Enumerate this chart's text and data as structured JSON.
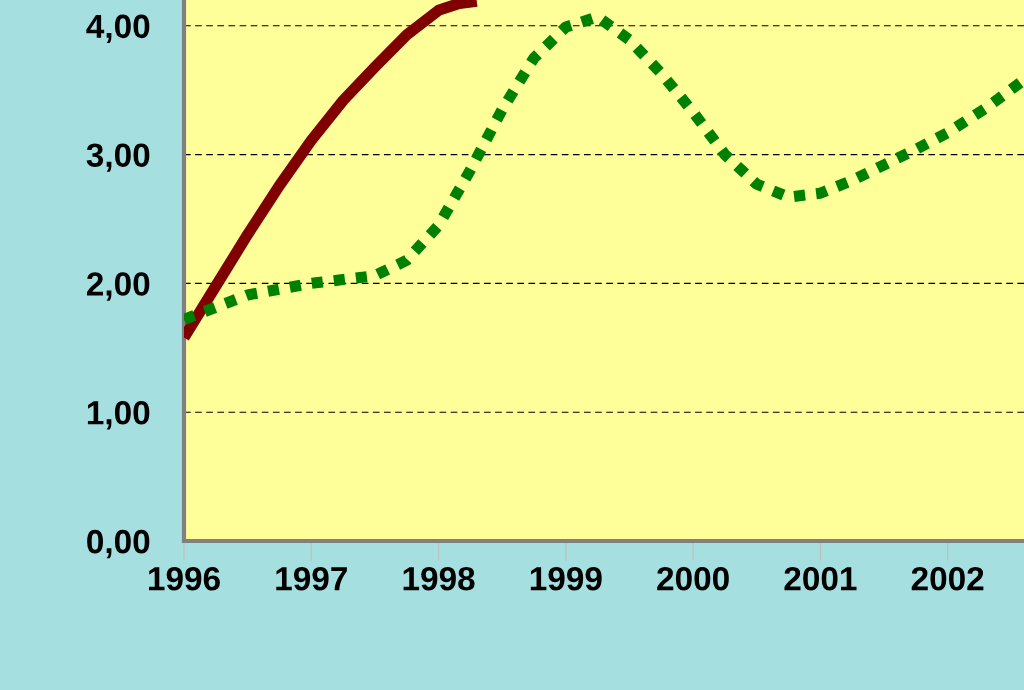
{
  "chart_data": {
    "type": "line",
    "series": [
      {
        "color": "#800000",
        "line_style": "solid",
        "x": [
          1996,
          1996.25,
          1996.5,
          1996.75,
          1997,
          1997.25,
          1997.5,
          1997.75,
          1998,
          1998.15,
          1998.3
        ],
        "values": [
          1.58,
          1.98,
          2.38,
          2.76,
          3.11,
          3.42,
          3.68,
          3.93,
          4.12,
          4.17,
          4.19
        ]
      },
      {
        "color": "#008000",
        "line_style": "dotted",
        "x": [
          1996,
          1996.5,
          1997,
          1997.5,
          1997.75,
          1998,
          1998.25,
          1998.5,
          1998.75,
          1999,
          1999.25,
          1999.5,
          1999.75,
          2000,
          2000.25,
          2000.5,
          2000.75,
          2001,
          2001.25,
          2001.5,
          2001.75,
          2002,
          2002.3,
          2002.6
        ],
        "values": [
          1.72,
          1.91,
          2.0,
          2.06,
          2.18,
          2.45,
          2.88,
          3.35,
          3.75,
          3.99,
          4.07,
          3.89,
          3.63,
          3.33,
          3.0,
          2.77,
          2.67,
          2.7,
          2.8,
          2.92,
          3.04,
          3.17,
          3.36,
          3.58
        ]
      }
    ],
    "xlim": [
      1996,
      2002.6
    ],
    "ylim": [
      0,
      4.2
    ],
    "xticks": [
      1996,
      1997,
      1998,
      1999,
      2000,
      2001,
      2002
    ],
    "yticks": [
      {
        "value": 0,
        "label": "0,00"
      },
      {
        "value": 1,
        "label": "1,00"
      },
      {
        "value": 2,
        "label": "2,00"
      },
      {
        "value": 3,
        "label": "3,00"
      },
      {
        "value": 4,
        "label": "4,00"
      }
    ],
    "grid": "y",
    "marker": "none"
  }
}
